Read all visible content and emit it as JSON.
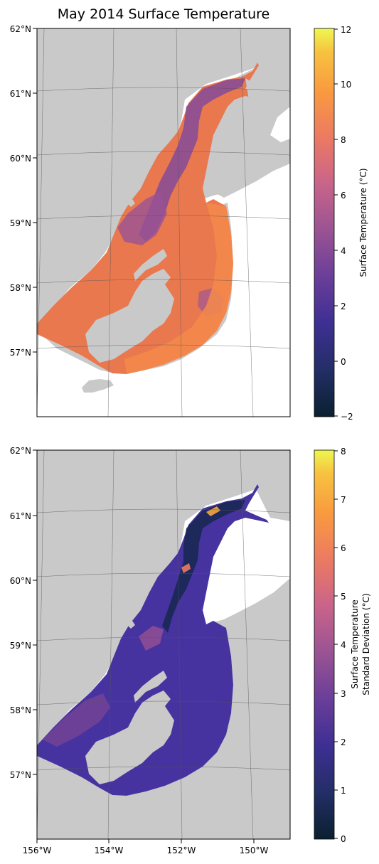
{
  "title": "May 2014 Surface Temperature",
  "latitude_labels": [
    "62°N",
    "61°N",
    "60°N",
    "59°N",
    "58°N",
    "57°N"
  ],
  "longitude_labels": [
    "156°W",
    "154°W",
    "152°W",
    "150°W"
  ],
  "colors": {
    "land": "#c9c9c9",
    "frame": "#000000",
    "grid": "#555555",
    "colormap": [
      "#0a2030",
      "#232e66",
      "#3d2f93",
      "#6a3e99",
      "#9a5393",
      "#c9648a",
      "#ec7a62",
      "#f99b3f",
      "#f7c240",
      "#eef850"
    ]
  },
  "chart_data": [
    {
      "type": "map",
      "panel": "top",
      "title": "May 2014 Surface Temperature",
      "colorbar": {
        "label": "Surface Temperature (°C)",
        "range": [
          -2,
          12
        ],
        "ticks": [
          "12",
          "10",
          "8",
          "6",
          "4",
          "2",
          "0",
          "−2"
        ]
      },
      "lat_ticks": [
        "62°N",
        "61°N",
        "60°N",
        "59°N",
        "58°N",
        "57°N"
      ]
    },
    {
      "type": "map",
      "panel": "bottom",
      "colorbar": {
        "label_line1": "Surface Temperature",
        "label_line2": "Standard Deviation (°C)",
        "range": [
          0,
          8
        ],
        "ticks": [
          "8",
          "7",
          "6",
          "5",
          "4",
          "3",
          "2",
          "1",
          "0"
        ]
      },
      "lat_ticks": [
        "62°N",
        "61°N",
        "60°N",
        "59°N",
        "58°N",
        "57°N"
      ],
      "lon_ticks": [
        "156°W",
        "154°W",
        "152°W",
        "150°W"
      ]
    }
  ]
}
